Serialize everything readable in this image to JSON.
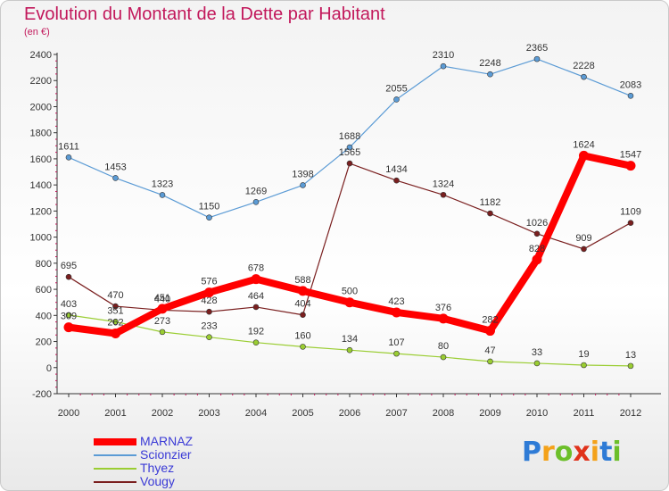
{
  "title": "Evolution du Montant de la Dette par Habitant",
  "subtitle": "(en €)",
  "logo_text": "Proxiti",
  "chart_data": {
    "type": "line",
    "x": [
      "2000",
      "2001",
      "2002",
      "2003",
      "2004",
      "2005",
      "2006",
      "2007",
      "2008",
      "2009",
      "2010",
      "2011",
      "2012"
    ],
    "ylim": [
      -200,
      2400
    ],
    "yticks": [
      -200,
      0,
      200,
      400,
      600,
      800,
      1000,
      1200,
      1400,
      1600,
      1800,
      2000,
      2200,
      2400
    ],
    "grid": false,
    "legend_position": "bottom-left",
    "series": [
      {
        "name": "MARNAZ",
        "color": "#ff0000",
        "values": [
          309,
          262,
          451,
          576,
          678,
          588,
          500,
          423,
          376,
          282,
          828,
          1624,
          1547
        ]
      },
      {
        "name": "Scionzier",
        "color": "#5b9bd5",
        "values": [
          1611,
          1453,
          1323,
          1150,
          1269,
          1398,
          1688,
          2055,
          2310,
          2248,
          2365,
          2228,
          2083
        ]
      },
      {
        "name": "Thyez",
        "color": "#9acd32",
        "values": [
          403,
          351,
          273,
          233,
          192,
          160,
          134,
          107,
          80,
          47,
          33,
          19,
          13
        ]
      },
      {
        "name": "Vougy",
        "color": "#7a1f1f",
        "values": [
          695,
          470,
          440,
          428,
          464,
          404,
          1565,
          1434,
          1324,
          1182,
          1026,
          909,
          1109
        ]
      }
    ]
  }
}
